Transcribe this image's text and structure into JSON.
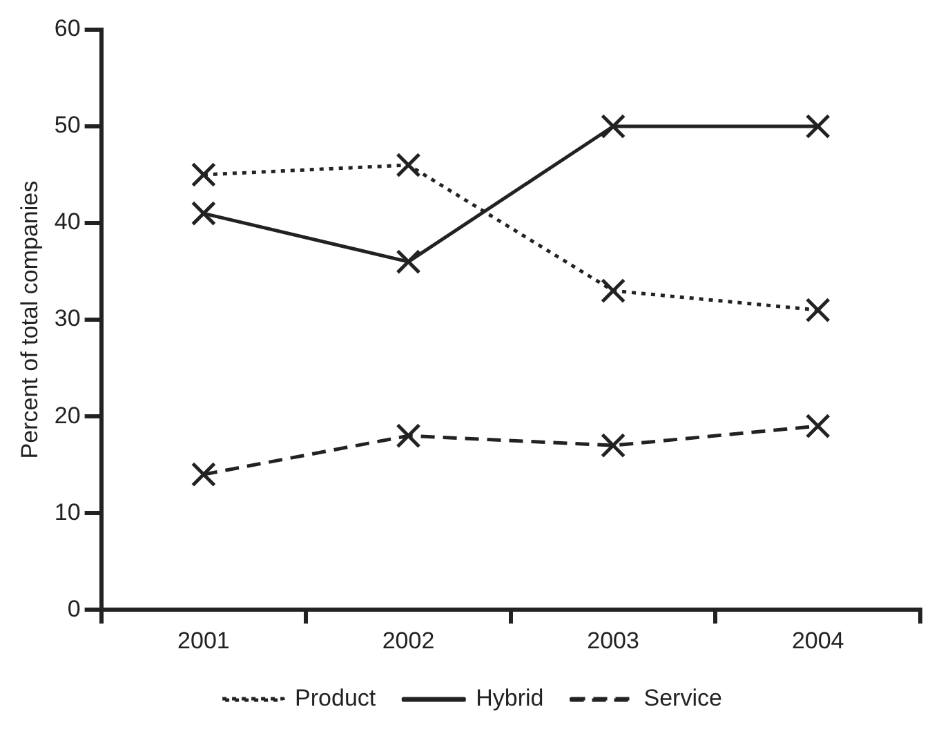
{
  "chart_data": {
    "type": "line",
    "ylabel": "Percent of total companies",
    "categories": [
      "2001",
      "2002",
      "2003",
      "2004"
    ],
    "series": [
      {
        "name": "Product",
        "color": "#222222",
        "line_style": "dotted",
        "values": [
          45,
          46,
          33,
          31
        ]
      },
      {
        "name": "Hybrid",
        "color": "#222222",
        "line_style": "solid",
        "values": [
          41,
          36,
          50,
          50
        ]
      },
      {
        "name": "Service",
        "color": "#222222",
        "line_style": "dashed",
        "values": [
          14,
          18,
          17,
          19
        ]
      }
    ],
    "ylim": [
      0,
      60
    ],
    "yticks": [
      0,
      10,
      20,
      30,
      40,
      50,
      60
    ],
    "grid": false,
    "legend": "bottom",
    "marker": "cross"
  }
}
